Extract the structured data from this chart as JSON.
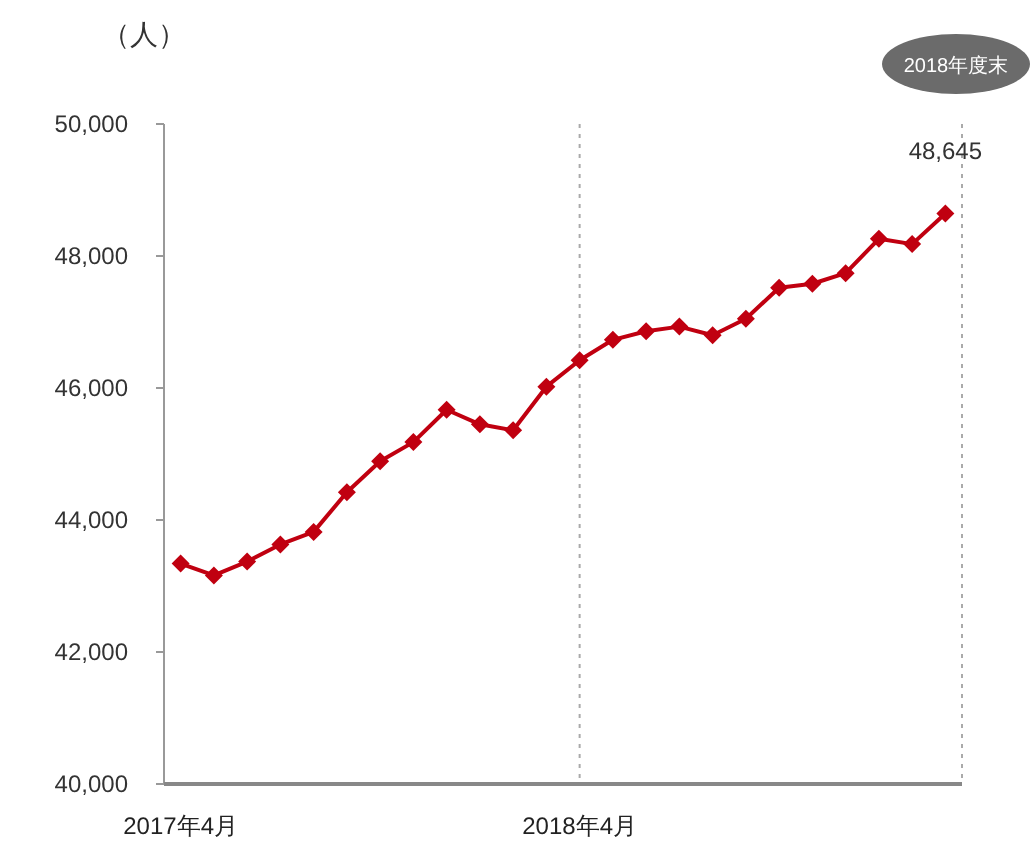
{
  "chart_data": {
    "type": "line",
    "ylabel": "（人）",
    "categories": [
      "2017年4月",
      null,
      null,
      null,
      null,
      null,
      null,
      null,
      null,
      null,
      null,
      null,
      "2018年4月",
      null,
      null,
      null,
      null,
      null,
      null,
      null,
      null,
      null,
      null,
      null
    ],
    "series": [
      {
        "color": "#c00010",
        "values": [
          43340,
          43160,
          43370,
          43630,
          43820,
          44420,
          44890,
          45180,
          45670,
          45450,
          45360,
          46020,
          46420,
          46730,
          46860,
          46930,
          46800,
          47050,
          47520,
          47580,
          47740,
          48260,
          48180,
          48645
        ],
        "value_labels": [
          null,
          null,
          null,
          null,
          null,
          null,
          null,
          null,
          null,
          null,
          null,
          null,
          null,
          null,
          null,
          null,
          null,
          null,
          null,
          null,
          null,
          null,
          null,
          "48,645"
        ]
      }
    ],
    "ylim": [
      40000,
      50000
    ],
    "yticks": [
      {
        "value": 40000,
        "label": "40,000"
      },
      {
        "value": 42000,
        "label": "42,000"
      },
      {
        "value": 44000,
        "label": "44,000"
      },
      {
        "value": 46000,
        "label": "46,000"
      },
      {
        "value": 48000,
        "label": "48,000"
      },
      {
        "value": 50000,
        "label": "50,000"
      }
    ],
    "ref_lines": [
      {
        "axis": "x",
        "value": "2018年4月",
        "color": "#aaaaaa",
        "line_style": "dotted"
      }
    ],
    "annotations": [
      "2018年度末"
    ],
    "marker": "diamond",
    "line_style": "solid",
    "grid": false
  }
}
